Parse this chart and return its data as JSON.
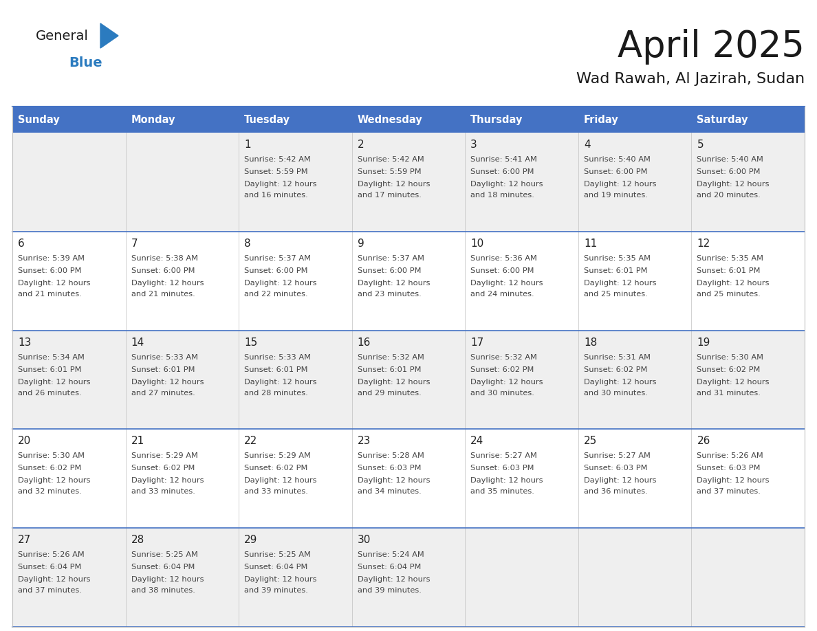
{
  "title": "April 2025",
  "subtitle": "Wad Rawah, Al Jazirah, Sudan",
  "header_color": "#4472C4",
  "header_text_color": "#FFFFFF",
  "day_names": [
    "Sunday",
    "Monday",
    "Tuesday",
    "Wednesday",
    "Thursday",
    "Friday",
    "Saturday"
  ],
  "calendar_data": [
    [
      {
        "day": "",
        "sunrise": "",
        "sunset": "",
        "daylight": ""
      },
      {
        "day": "",
        "sunrise": "",
        "sunset": "",
        "daylight": ""
      },
      {
        "day": "1",
        "sunrise": "5:42 AM",
        "sunset": "5:59 PM",
        "daylight": "16 minutes."
      },
      {
        "day": "2",
        "sunrise": "5:42 AM",
        "sunset": "5:59 PM",
        "daylight": "17 minutes."
      },
      {
        "day": "3",
        "sunrise": "5:41 AM",
        "sunset": "6:00 PM",
        "daylight": "18 minutes."
      },
      {
        "day": "4",
        "sunrise": "5:40 AM",
        "sunset": "6:00 PM",
        "daylight": "19 minutes."
      },
      {
        "day": "5",
        "sunrise": "5:40 AM",
        "sunset": "6:00 PM",
        "daylight": "20 minutes."
      }
    ],
    [
      {
        "day": "6",
        "sunrise": "5:39 AM",
        "sunset": "6:00 PM",
        "daylight": "21 minutes."
      },
      {
        "day": "7",
        "sunrise": "5:38 AM",
        "sunset": "6:00 PM",
        "daylight": "21 minutes."
      },
      {
        "day": "8",
        "sunrise": "5:37 AM",
        "sunset": "6:00 PM",
        "daylight": "22 minutes."
      },
      {
        "day": "9",
        "sunrise": "5:37 AM",
        "sunset": "6:00 PM",
        "daylight": "23 minutes."
      },
      {
        "day": "10",
        "sunrise": "5:36 AM",
        "sunset": "6:00 PM",
        "daylight": "24 minutes."
      },
      {
        "day": "11",
        "sunrise": "5:35 AM",
        "sunset": "6:01 PM",
        "daylight": "25 minutes."
      },
      {
        "day": "12",
        "sunrise": "5:35 AM",
        "sunset": "6:01 PM",
        "daylight": "25 minutes."
      }
    ],
    [
      {
        "day": "13",
        "sunrise": "5:34 AM",
        "sunset": "6:01 PM",
        "daylight": "26 minutes."
      },
      {
        "day": "14",
        "sunrise": "5:33 AM",
        "sunset": "6:01 PM",
        "daylight": "27 minutes."
      },
      {
        "day": "15",
        "sunrise": "5:33 AM",
        "sunset": "6:01 PM",
        "daylight": "28 minutes."
      },
      {
        "day": "16",
        "sunrise": "5:32 AM",
        "sunset": "6:01 PM",
        "daylight": "29 minutes."
      },
      {
        "day": "17",
        "sunrise": "5:32 AM",
        "sunset": "6:02 PM",
        "daylight": "30 minutes."
      },
      {
        "day": "18",
        "sunrise": "5:31 AM",
        "sunset": "6:02 PM",
        "daylight": "30 minutes."
      },
      {
        "day": "19",
        "sunrise": "5:30 AM",
        "sunset": "6:02 PM",
        "daylight": "31 minutes."
      }
    ],
    [
      {
        "day": "20",
        "sunrise": "5:30 AM",
        "sunset": "6:02 PM",
        "daylight": "32 minutes."
      },
      {
        "day": "21",
        "sunrise": "5:29 AM",
        "sunset": "6:02 PM",
        "daylight": "33 minutes."
      },
      {
        "day": "22",
        "sunrise": "5:29 AM",
        "sunset": "6:02 PM",
        "daylight": "33 minutes."
      },
      {
        "day": "23",
        "sunrise": "5:28 AM",
        "sunset": "6:03 PM",
        "daylight": "34 minutes."
      },
      {
        "day": "24",
        "sunrise": "5:27 AM",
        "sunset": "6:03 PM",
        "daylight": "35 minutes."
      },
      {
        "day": "25",
        "sunrise": "5:27 AM",
        "sunset": "6:03 PM",
        "daylight": "36 minutes."
      },
      {
        "day": "26",
        "sunrise": "5:26 AM",
        "sunset": "6:03 PM",
        "daylight": "37 minutes."
      }
    ],
    [
      {
        "day": "27",
        "sunrise": "5:26 AM",
        "sunset": "6:04 PM",
        "daylight": "37 minutes."
      },
      {
        "day": "28",
        "sunrise": "5:25 AM",
        "sunset": "6:04 PM",
        "daylight": "38 minutes."
      },
      {
        "day": "29",
        "sunrise": "5:25 AM",
        "sunset": "6:04 PM",
        "daylight": "39 minutes."
      },
      {
        "day": "30",
        "sunrise": "5:24 AM",
        "sunset": "6:04 PM",
        "daylight": "39 minutes."
      },
      {
        "day": "",
        "sunrise": "",
        "sunset": "",
        "daylight": ""
      },
      {
        "day": "",
        "sunrise": "",
        "sunset": "",
        "daylight": ""
      },
      {
        "day": "",
        "sunrise": "",
        "sunset": "",
        "daylight": ""
      }
    ]
  ],
  "logo_color1": "#1a1a1a",
  "logo_color2": "#2b7bbf",
  "logo_triangle_color": "#2b7bbf",
  "row_bg_colors": [
    "#EFEFEF",
    "#FFFFFF",
    "#EFEFEF",
    "#FFFFFF",
    "#EFEFEF"
  ],
  "separator_color": "#4472C4",
  "cell_line_color": "#C0C0C0"
}
